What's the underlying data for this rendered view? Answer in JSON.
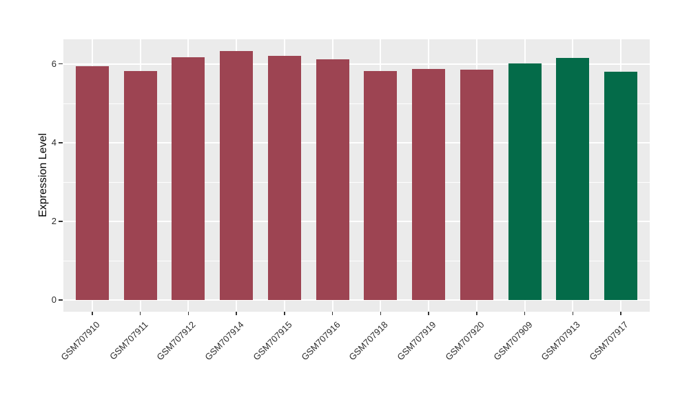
{
  "figure": {
    "background": "#FFFFFF",
    "panel_background": "#EBEBEB",
    "gridline_color": "#FFFFFF",
    "tick_mark_color": "#333333",
    "axis_text_color": "#2b2b2b",
    "axis_title_color": "#000000",
    "bar_color_group1": "#9D4452",
    "bar_color_group2": "#046B49"
  },
  "chart_data": {
    "type": "bar",
    "title": "",
    "xlabel": "",
    "ylabel": "Expression Level",
    "categories": [
      "GSM707910",
      "GSM707911",
      "GSM707912",
      "GSM707914",
      "GSM707915",
      "GSM707916",
      "GSM707918",
      "GSM707919",
      "GSM707920",
      "GSM707909",
      "GSM707913",
      "GSM707917"
    ],
    "values": [
      5.95,
      5.82,
      6.17,
      6.32,
      6.21,
      6.12,
      5.82,
      5.88,
      5.85,
      6.02,
      6.15,
      5.81
    ],
    "bar_colors": [
      "#9D4452",
      "#9D4452",
      "#9D4452",
      "#9D4452",
      "#9D4452",
      "#9D4452",
      "#9D4452",
      "#9D4452",
      "#9D4452",
      "#046B49",
      "#046B49",
      "#046B49"
    ],
    "ylim": [
      0,
      6.63
    ],
    "yticks": [
      0,
      2,
      4,
      6
    ],
    "yticks_minor": [
      1,
      3,
      5
    ],
    "x_tick_rotation_deg": 45,
    "grid": "on",
    "legend": "none"
  }
}
